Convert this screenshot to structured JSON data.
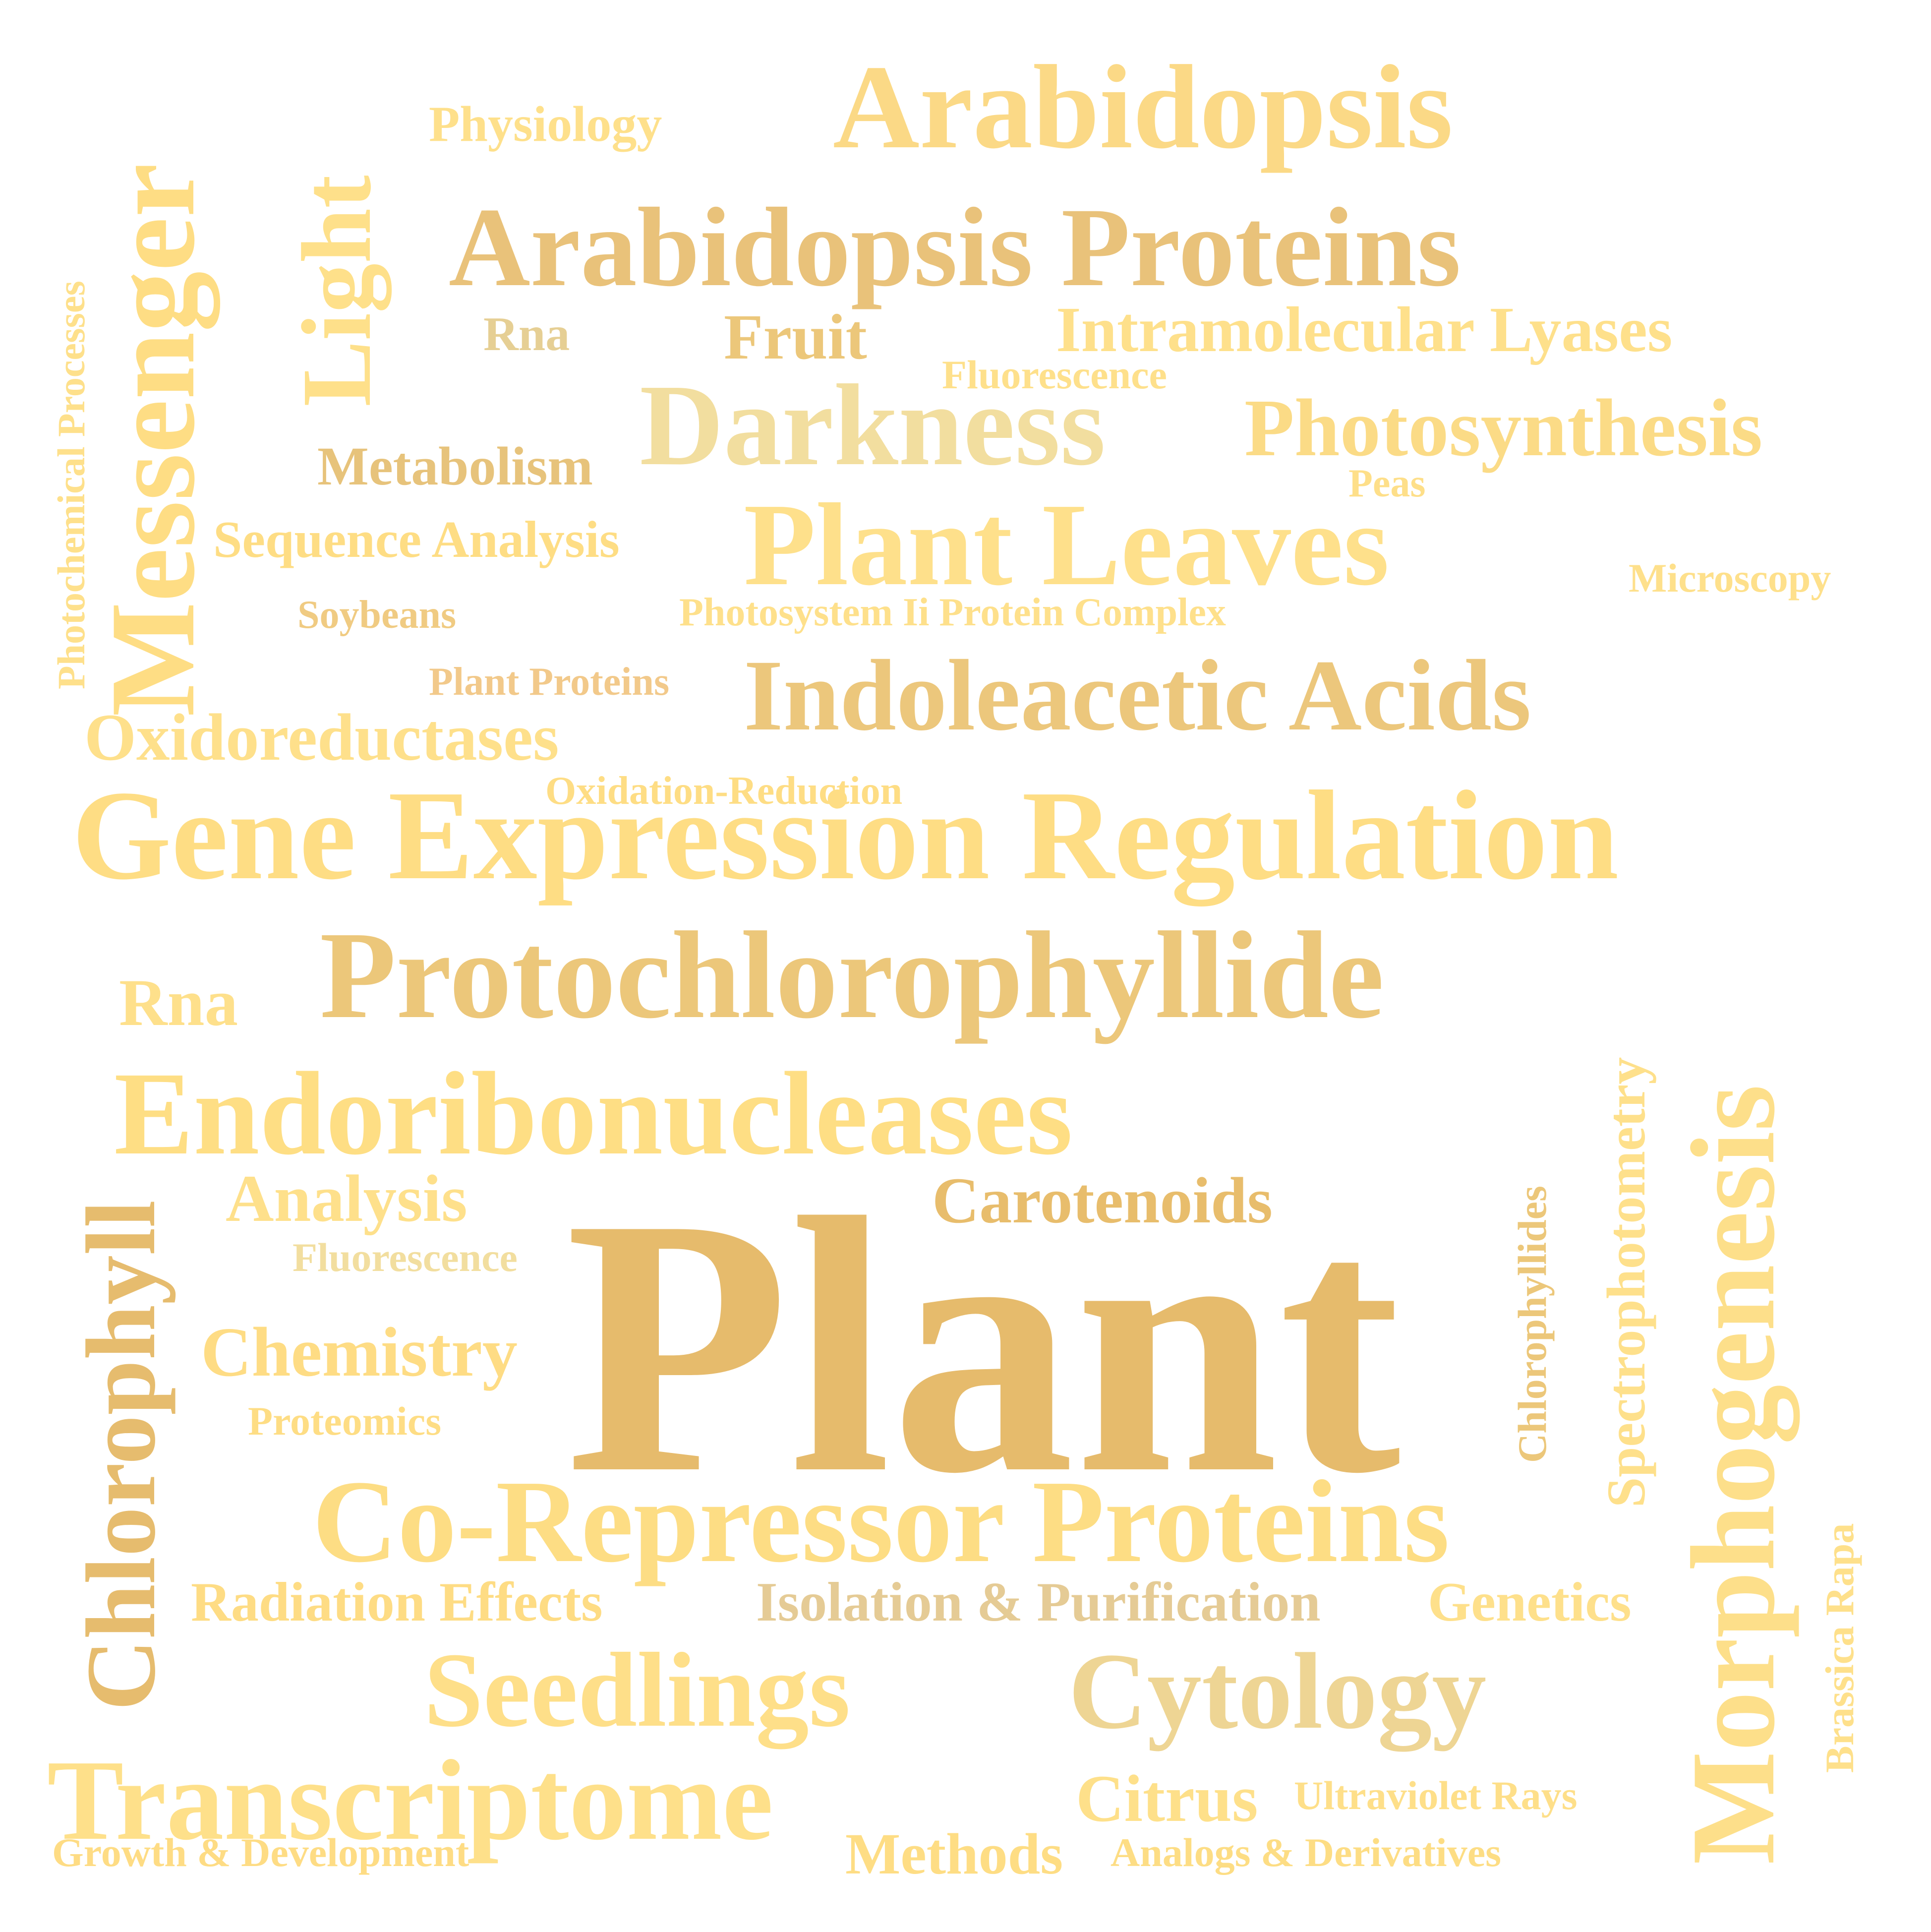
{
  "words": [
    {
      "text": "Plant",
      "color": "#e6bb6c"
    },
    {
      "text": "Gene Expression Regulation",
      "color": "#fedd84"
    },
    {
      "text": "Protochlorophyllide",
      "color": "#ecc77a"
    },
    {
      "text": "Arabidopsis Proteins",
      "color": "#e9c27a"
    },
    {
      "text": "Co-Repressor Proteins",
      "color": "#fddd84"
    },
    {
      "text": "Endoribonucleases",
      "color": "#fede84"
    },
    {
      "text": "Morphogenesis",
      "color": "#fddf8a"
    },
    {
      "text": "Plant Leaves",
      "color": "#fee08b"
    },
    {
      "text": "Arabidopsis",
      "color": "#fbd986"
    },
    {
      "text": "Indoleacetic Acids",
      "color": "#ecc77c"
    },
    {
      "text": "Darkness",
      "color": "#f2de9f"
    },
    {
      "text": "Messenger",
      "color": "#fedd84"
    },
    {
      "text": "Transcriptome",
      "color": "#fee08a"
    },
    {
      "text": "Seedlings",
      "color": "#fedf89"
    },
    {
      "text": "Cytology",
      "color": "#eed594"
    },
    {
      "text": "Light",
      "color": "#fee08a"
    },
    {
      "text": "Photosynthesis",
      "color": "#fbdb86"
    },
    {
      "text": "Chlorophyll",
      "color": "#e6bc6e"
    },
    {
      "text": "Intramolecular Lyases",
      "color": "#fee08b"
    },
    {
      "text": "Oxidoreductases",
      "color": "#fee08b"
    },
    {
      "text": "Carotenoids",
      "color": "#e8bd6c"
    },
    {
      "text": "Chemistry",
      "color": "#fedc84"
    },
    {
      "text": "Analysis",
      "color": "#fee08b"
    },
    {
      "text": "Spectrophotometry",
      "color": "#fee08b"
    },
    {
      "text": "Isolation & Purification",
      "color": "#e5cb95"
    },
    {
      "text": "Genetics",
      "color": "#fee08b"
    },
    {
      "text": "Radiation Effects",
      "color": "#fedc84"
    },
    {
      "text": "Citrus",
      "color": "#fee08a"
    },
    {
      "text": "Methods",
      "color": "#fedd84"
    },
    {
      "text": "Fruit",
      "color": "#ecc77a"
    },
    {
      "text": "Rna",
      "color": "#fee08b"
    },
    {
      "text": "Rna",
      "color": "#e6cf94"
    },
    {
      "text": "Sequence Analysis",
      "color": "#fedd84"
    },
    {
      "text": "Physiology",
      "color": "#fee08b"
    },
    {
      "text": "Metabolism",
      "color": "#e7c37b"
    },
    {
      "text": "Microscopy",
      "color": "#fee08b"
    },
    {
      "text": "Ultraviolet Rays",
      "color": "#fedf89"
    },
    {
      "text": "Analogs & Derivatives",
      "color": "#fddd84"
    },
    {
      "text": "Growth & Development",
      "color": "#fedc84"
    },
    {
      "text": "Photosystem Ii Protein Complex",
      "color": "#fee08b"
    },
    {
      "text": "Fluorescence",
      "color": "#fee08b"
    },
    {
      "text": "Fluorescence",
      "color": "#f2de9f"
    },
    {
      "text": "Proteomics",
      "color": "#fedd84"
    },
    {
      "text": "Oxidation-Reduction",
      "color": "#fedd84"
    },
    {
      "text": "Plant Proteins",
      "color": "#f2c98a"
    },
    {
      "text": "Soybeans",
      "color": "#f0cb82"
    },
    {
      "text": "Peas",
      "color": "#fedf89"
    },
    {
      "text": "Chlorophyllides",
      "color": "#ecc77a"
    },
    {
      "text": "Brassica Rapa",
      "color": "#fee08b"
    },
    {
      "text": "Photochemical Processes",
      "color": "#fee08b"
    }
  ]
}
